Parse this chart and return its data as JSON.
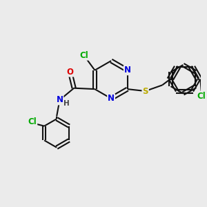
{
  "bg_color": "#ebebeb",
  "bond_color": "#111111",
  "bond_width": 1.5,
  "atom_colors": {
    "C": "#111111",
    "N": "#0000dd",
    "O": "#dd0000",
    "S": "#bbaa00",
    "Cl": "#00aa00",
    "H": "#444444"
  },
  "font_size": 8.5
}
